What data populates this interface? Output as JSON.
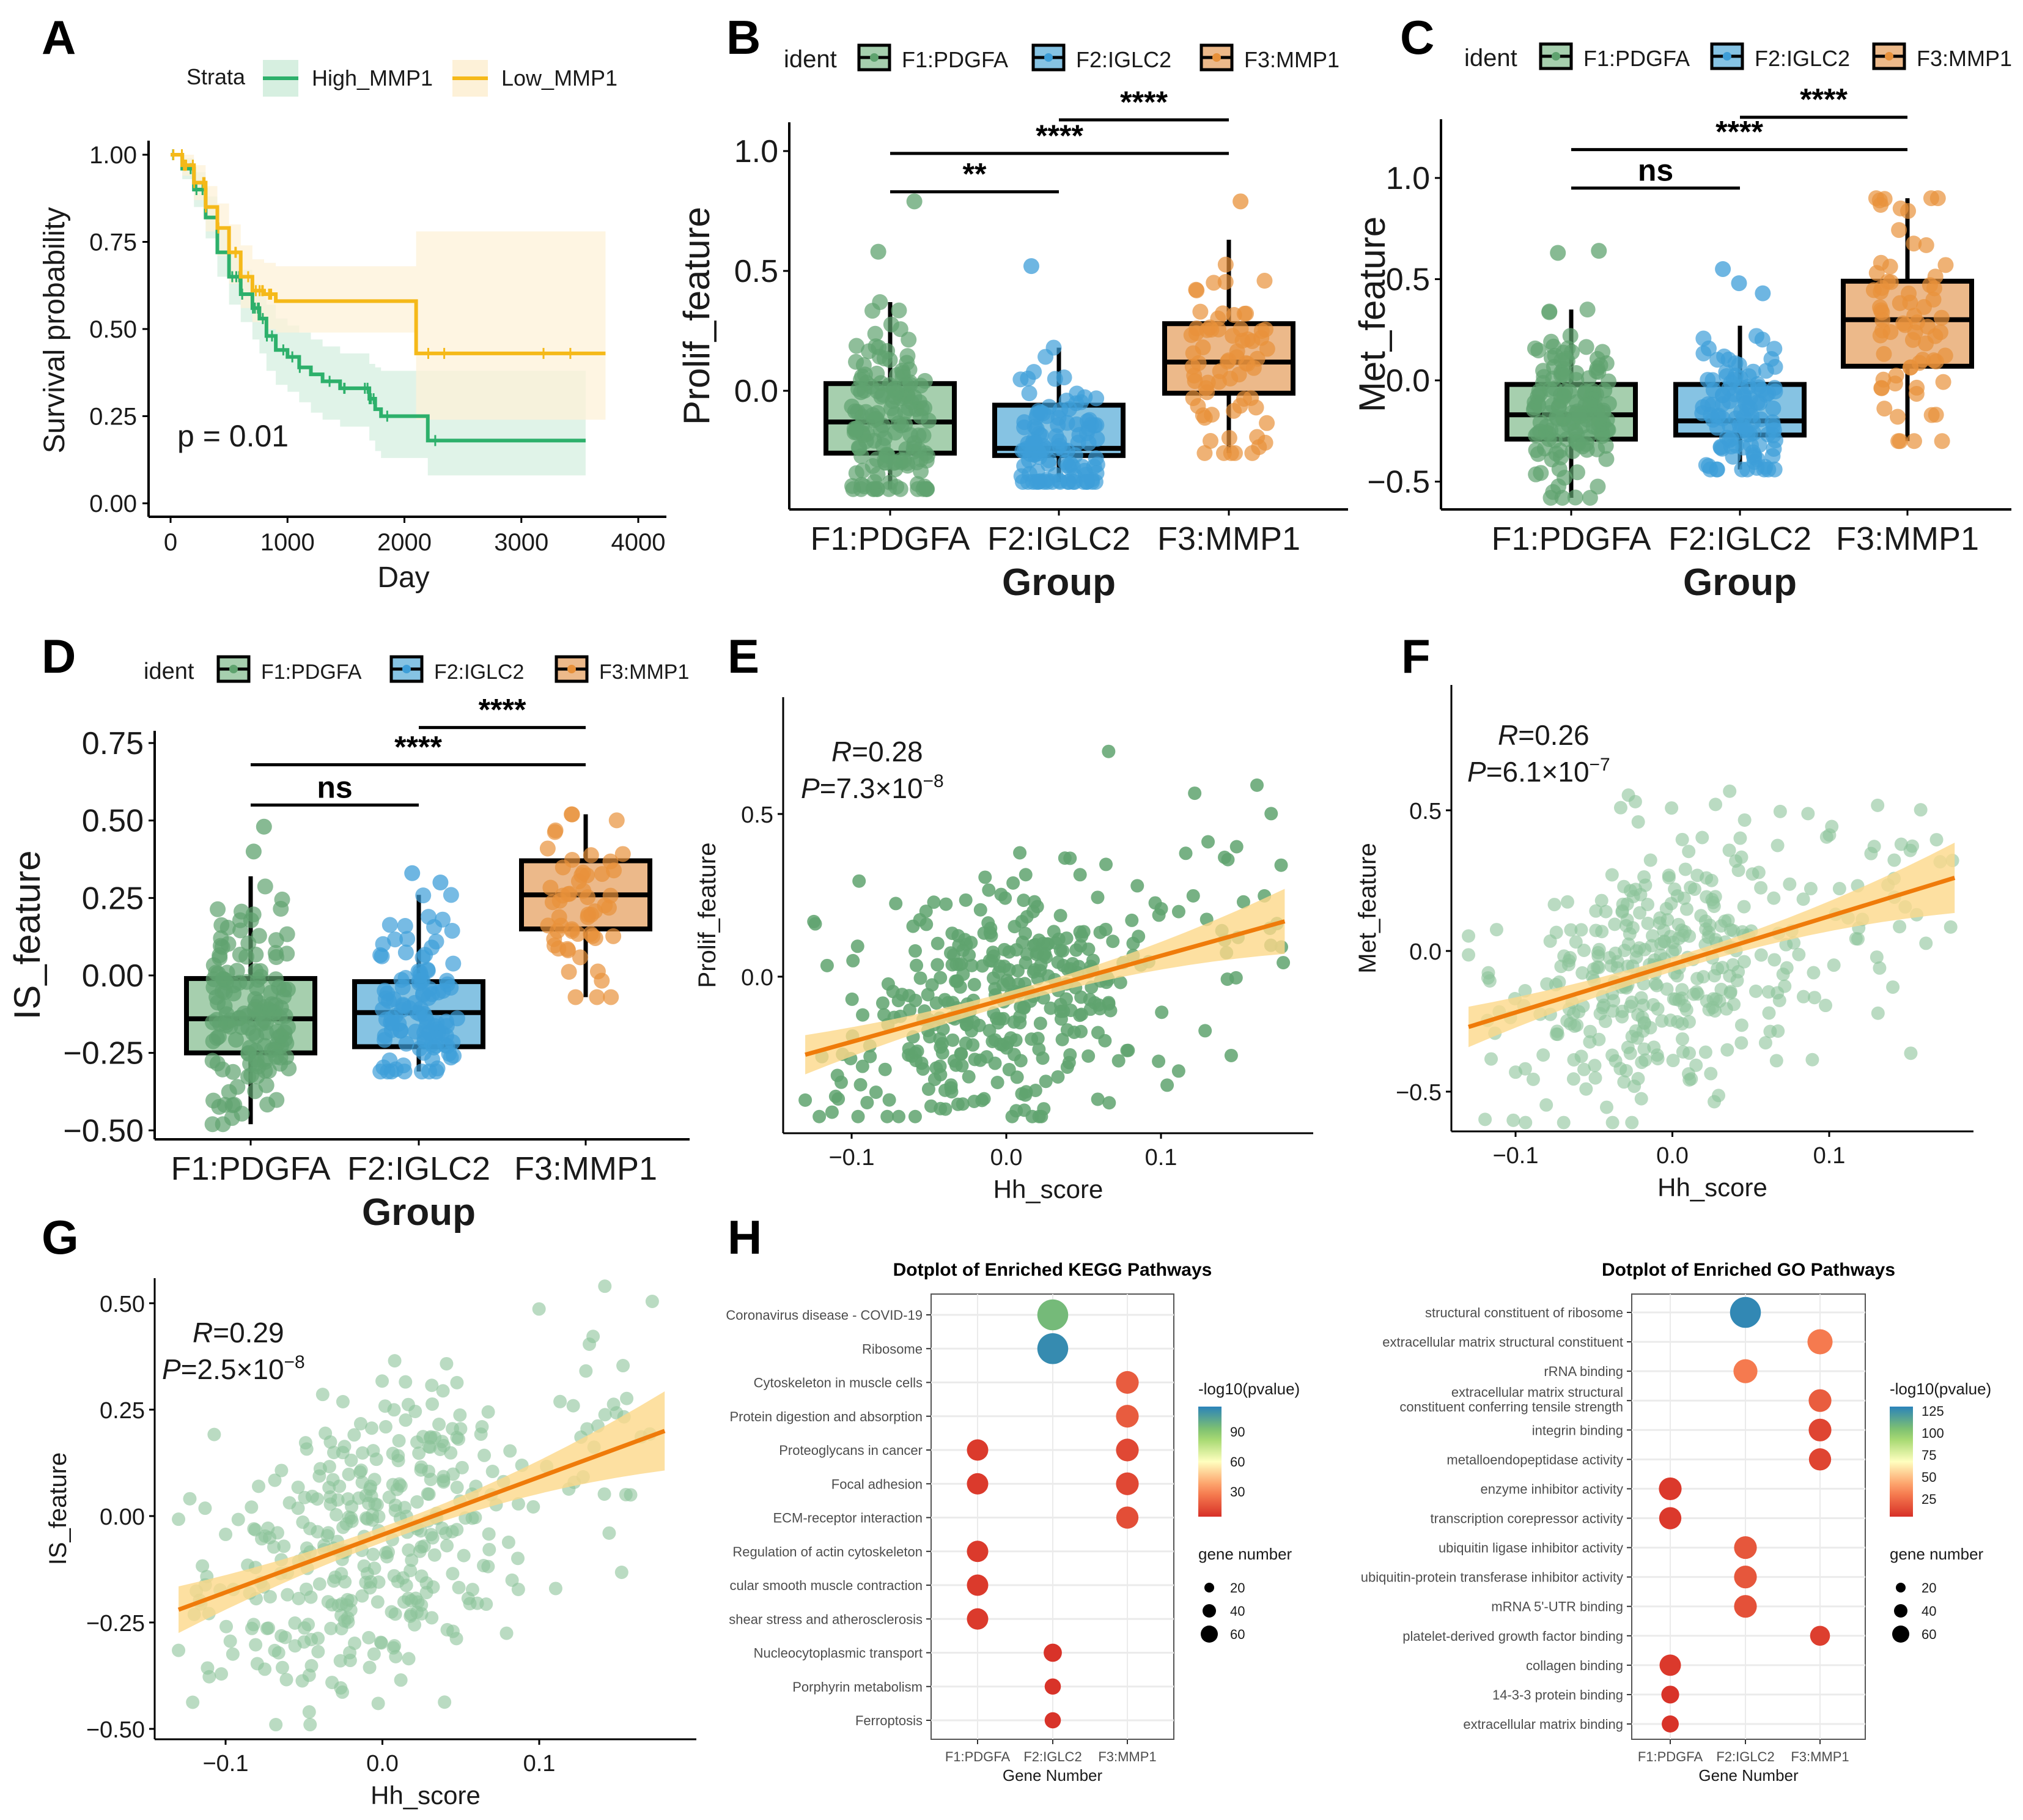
{
  "figure": {
    "panel_letters": [
      "A",
      "B",
      "C",
      "D",
      "E",
      "F",
      "G",
      "H"
    ]
  },
  "chart_data": [
    {
      "panel": "A",
      "type": "line",
      "subtype": "kaplan-meier",
      "title": "",
      "xlabel": "Day",
      "ylabel": "Survival probability",
      "xlim": [
        0,
        4000
      ],
      "ylim": [
        0,
        1
      ],
      "xticks": [
        "0",
        "1000",
        "2000",
        "3000",
        "4000"
      ],
      "yticks": [
        "0.00",
        "0.25",
        "0.50",
        "0.75",
        "1.00"
      ],
      "legend": {
        "title": "Strata",
        "position": "top",
        "entries": [
          "High_MMP1",
          "Low_MMP1"
        ]
      },
      "annotation": "p = 0.01",
      "series": [
        {
          "name": "High_MMP1",
          "color": "#2db06b",
          "ci_color": "#d6efe0",
          "x": [
            0,
            100,
            200,
            300,
            400,
            500,
            600,
            700,
            760,
            820,
            900,
            1000,
            1100,
            1200,
            1300,
            1450,
            1700,
            1750,
            1800,
            2100,
            2200,
            3550
          ],
          "y": [
            1.0,
            0.96,
            0.9,
            0.82,
            0.72,
            0.65,
            0.6,
            0.56,
            0.53,
            0.48,
            0.44,
            0.42,
            0.39,
            0.37,
            0.35,
            0.33,
            0.3,
            0.27,
            0.25,
            0.25,
            0.18,
            0.18
          ],
          "ci_low": [
            1.0,
            0.93,
            0.85,
            0.76,
            0.65,
            0.57,
            0.52,
            0.47,
            0.43,
            0.38,
            0.34,
            0.32,
            0.29,
            0.26,
            0.24,
            0.22,
            0.18,
            0.15,
            0.13,
            0.13,
            0.08,
            0.08
          ],
          "ci_high": [
            1.0,
            0.99,
            0.95,
            0.88,
            0.79,
            0.72,
            0.67,
            0.63,
            0.61,
            0.57,
            0.53,
            0.51,
            0.49,
            0.47,
            0.45,
            0.43,
            0.4,
            0.39,
            0.38,
            0.38,
            0.38,
            0.38
          ]
        },
        {
          "name": "Low_MMP1",
          "color": "#f5b919",
          "ci_color": "#fdf1d8",
          "x": [
            0,
            100,
            200,
            300,
            400,
            500,
            600,
            700,
            800,
            900,
            2100,
            3720
          ],
          "y": [
            1.0,
            0.97,
            0.92,
            0.85,
            0.79,
            0.72,
            0.65,
            0.61,
            0.6,
            0.58,
            0.43,
            0.43
          ],
          "ci_low": [
            1.0,
            0.94,
            0.87,
            0.78,
            0.71,
            0.63,
            0.56,
            0.52,
            0.5,
            0.49,
            0.24,
            0.24
          ],
          "ci_high": [
            1.0,
            1.0,
            0.97,
            0.91,
            0.86,
            0.8,
            0.74,
            0.7,
            0.69,
            0.68,
            0.78,
            0.78
          ]
        }
      ]
    },
    {
      "panel": "B",
      "type": "box",
      "xlabel": "Group",
      "ylabel": "Prolif_feature",
      "ylim": [
        -0.45,
        1.1
      ],
      "yticks": [
        "0.0",
        "0.5",
        "1.0"
      ],
      "ytick_values": [
        0.0,
        0.5,
        1.0
      ],
      "legend": {
        "title": "ident",
        "position": "top",
        "entries": [
          "F1:PDGFA",
          "F2:IGLC2",
          "F3:MMP1"
        ]
      },
      "categories": [
        "F1:PDGFA",
        "F2:IGLC2",
        "F3:MMP1"
      ],
      "boxes": [
        {
          "q1": -0.26,
          "median": -0.13,
          "q3": 0.03,
          "whisker_low": -0.41,
          "whisker_high": 0.37,
          "n_points": 150,
          "outliers": [
            0.79,
            0.58
          ]
        },
        {
          "q1": -0.27,
          "median": -0.24,
          "q3": -0.06,
          "whisker_low": -0.38,
          "whisker_high": 0.18,
          "n_points": 110,
          "outliers": [
            0.52
          ]
        },
        {
          "q1": -0.01,
          "median": 0.12,
          "q3": 0.28,
          "whisker_low": -0.26,
          "whisker_high": 0.63,
          "n_points": 70,
          "outliers": [
            0.79
          ]
        }
      ],
      "comparisons": [
        {
          "from": 0,
          "to": 1,
          "label": "**",
          "y": 0.83
        },
        {
          "from": 0,
          "to": 2,
          "label": "****",
          "y": 0.99
        },
        {
          "from": 1,
          "to": 2,
          "label": "****",
          "y": 1.13
        }
      ]
    },
    {
      "panel": "C",
      "type": "box",
      "xlabel": "Group",
      "ylabel": "Met_feature",
      "ylim": [
        -0.6,
        1.3
      ],
      "yticks": [
        "−0.5",
        "0.0",
        "0.5",
        "1.0"
      ],
      "ytick_values": [
        -0.5,
        0.0,
        0.5,
        1.0
      ],
      "legend": {
        "title": "ident",
        "position": "top",
        "entries": [
          "F1:PDGFA",
          "F2:IGLC2",
          "F3:MMP1"
        ]
      },
      "categories": [
        "F1:PDGFA",
        "F2:IGLC2",
        "F3:MMP1"
      ],
      "boxes": [
        {
          "q1": -0.29,
          "median": -0.17,
          "q3": -0.02,
          "whisker_low": -0.58,
          "whisker_high": 0.35,
          "n_points": 150,
          "outliers": [
            0.63,
            0.64
          ]
        },
        {
          "q1": -0.27,
          "median": -0.2,
          "q3": -0.02,
          "whisker_low": -0.44,
          "whisker_high": 0.27,
          "n_points": 110,
          "outliers": [
            0.55,
            0.48,
            0.43
          ]
        },
        {
          "q1": 0.07,
          "median": 0.3,
          "q3": 0.49,
          "whisker_low": -0.3,
          "whisker_high": 0.9,
          "n_points": 70,
          "outliers": []
        }
      ],
      "comparisons": [
        {
          "from": 0,
          "to": 1,
          "label": "ns",
          "y": 0.95
        },
        {
          "from": 0,
          "to": 2,
          "label": "****",
          "y": 1.14
        },
        {
          "from": 1,
          "to": 2,
          "label": "****",
          "y": 1.3
        }
      ]
    },
    {
      "panel": "D",
      "type": "box",
      "xlabel": "Group",
      "ylabel": "IS_feature",
      "ylim": [
        -0.53,
        0.77
      ],
      "yticks": [
        "−0.50",
        "−0.25",
        "0.00",
        "0.25",
        "0.50",
        "0.75"
      ],
      "ytick_values": [
        -0.5,
        -0.25,
        0.0,
        0.25,
        0.5,
        0.75
      ],
      "legend": {
        "title": "ident",
        "position": "top",
        "entries": [
          "F1:PDGFA",
          "F2:IGLC2",
          "F3:MMP1"
        ]
      },
      "categories": [
        "F1:PDGFA",
        "F2:IGLC2",
        "F3:MMP1"
      ],
      "boxes": [
        {
          "q1": -0.25,
          "median": -0.14,
          "q3": -0.01,
          "whisker_low": -0.48,
          "whisker_high": 0.32,
          "n_points": 150,
          "outliers": [
            0.48,
            0.4
          ]
        },
        {
          "q1": -0.23,
          "median": -0.12,
          "q3": -0.02,
          "whisker_low": -0.31,
          "whisker_high": 0.26,
          "n_points": 110,
          "outliers": [
            0.33,
            0.3
          ]
        },
        {
          "q1": 0.15,
          "median": 0.26,
          "q3": 0.37,
          "whisker_low": -0.07,
          "whisker_high": 0.52,
          "n_points": 55,
          "outliers": []
        }
      ],
      "comparisons": [
        {
          "from": 0,
          "to": 1,
          "label": "ns",
          "y": 0.55
        },
        {
          "from": 0,
          "to": 2,
          "label": "****",
          "y": 0.68
        },
        {
          "from": 1,
          "to": 2,
          "label": "****",
          "y": 0.8
        }
      ]
    },
    {
      "panel": "E",
      "type": "scatter",
      "xlabel": "Hh_score",
      "ylabel": "Prolif_feature",
      "xlim": [
        -0.145,
        0.195
      ],
      "ylim": [
        -0.47,
        0.87
      ],
      "xticks": [
        "−0.1",
        "0.0",
        "0.1"
      ],
      "xtick_values": [
        -0.1,
        0.0,
        0.1
      ],
      "yticks": [
        "0.0",
        "0.5"
      ],
      "ytick_values": [
        0.0,
        0.5
      ],
      "annotation": {
        "R": "0.28",
        "P_mantissa": "7.3",
        "P_exponent": "−8"
      },
      "fit": {
        "x": [
          -0.13,
          0.18
        ],
        "y": [
          -0.24,
          0.17
        ],
        "ci_half_width_ends": [
          0.06,
          0.08
        ],
        "ci_half_width_mid": 0.02
      },
      "n_points": 380,
      "point_color": "#5fa36f",
      "line_color": "#ef7b0a",
      "band_color": "#fcd88a"
    },
    {
      "panel": "F",
      "type": "scatter",
      "xlabel": "Hh_score",
      "ylabel": "Met_feature",
      "xlim": [
        -0.135,
        0.21
      ],
      "ylim": [
        -0.65,
        0.96
      ],
      "xticks": [
        "−0.1",
        "0.0",
        "0.1"
      ],
      "xtick_values": [
        -0.1,
        0.0,
        0.1
      ],
      "yticks": [
        "−0.5",
        "0.0",
        "0.5"
      ],
      "ytick_values": [
        -0.5,
        0.0,
        0.5
      ],
      "annotation": {
        "R": "0.26",
        "P_mantissa": "6.1",
        "P_exponent": "−7"
      },
      "fit": {
        "x": [
          -0.13,
          0.18
        ],
        "y": [
          -0.27,
          0.26
        ],
        "ci_half_width_ends": [
          0.07,
          0.1
        ],
        "ci_half_width_mid": 0.025
      },
      "n_points": 380,
      "point_color": "#8cc39a",
      "line_color": "#ef7b0a",
      "band_color": "#fcd88a"
    },
    {
      "panel": "G",
      "type": "scatter",
      "xlabel": "Hh_score",
      "ylabel": "IS_feature",
      "xlim": [
        -0.145,
        0.195
      ],
      "ylim": [
        -0.53,
        0.57
      ],
      "xticks": [
        "−0.1",
        "0.0",
        "0.1"
      ],
      "xtick_values": [
        -0.1,
        0.0,
        0.1
      ],
      "yticks": [
        "−0.50",
        "−0.25",
        "0.00",
        "0.25",
        "0.50"
      ],
      "ytick_values": [
        -0.5,
        -0.25,
        0.0,
        0.25,
        0.5
      ],
      "annotation": {
        "R": "0.29",
        "P_mantissa": "2.5",
        "P_exponent": "−8"
      },
      "fit": {
        "x": [
          -0.13,
          0.18
        ],
        "y": [
          -0.22,
          0.2
        ],
        "ci_half_width_ends": [
          0.055,
          0.075
        ],
        "ci_half_width_mid": 0.018
      },
      "n_points": 380,
      "point_color": "#8cc39a",
      "line_color": "#ef7b0a",
      "band_color": "#fcd88a"
    },
    {
      "panel": "H-KEGG",
      "type": "scatter",
      "subtype": "dotplot",
      "title": "Dotplot of Enriched KEGG Pathways",
      "xlabel": "Gene Number",
      "ylabel": "",
      "categories": [
        "F1:PDGFA",
        "F2:IGLC2",
        "F3:MMP1"
      ],
      "color_legend": {
        "title": "-log10(pvalue)",
        "ticks": [
          30,
          60,
          90
        ],
        "range": [
          5,
          115
        ]
      },
      "size_legend": {
        "title": "gene number",
        "ticks": [
          20,
          40,
          60
        ]
      },
      "terms": [
        "Coronavirus disease - COVID-19",
        "Ribosome",
        "Cytoskeleton in muscle cells",
        "Protein digestion and absorption",
        "Proteoglycans in cancer",
        "Focal adhesion",
        "ECM-receptor interaction",
        "Regulation of actin cytoskeleton",
        "cular smooth muscle contraction",
        "shear stress and atherosclerosis",
        "Nucleocytoplasmic transport",
        "Porphyrin metabolism",
        "Ferroptosis"
      ],
      "points": [
        {
          "term": 0,
          "group": 1,
          "pval": 95,
          "genes": 70
        },
        {
          "term": 1,
          "group": 1,
          "pval": 112,
          "genes": 70
        },
        {
          "term": 2,
          "group": 2,
          "pval": 18,
          "genes": 30
        },
        {
          "term": 3,
          "group": 2,
          "pval": 18,
          "genes": 30
        },
        {
          "term": 4,
          "group": 0,
          "pval": 8,
          "genes": 25
        },
        {
          "term": 4,
          "group": 2,
          "pval": 12,
          "genes": 30
        },
        {
          "term": 5,
          "group": 0,
          "pval": 8,
          "genes": 25
        },
        {
          "term": 5,
          "group": 2,
          "pval": 12,
          "genes": 30
        },
        {
          "term": 6,
          "group": 2,
          "pval": 14,
          "genes": 28
        },
        {
          "term": 7,
          "group": 0,
          "pval": 8,
          "genes": 25
        },
        {
          "term": 8,
          "group": 0,
          "pval": 8,
          "genes": 25
        },
        {
          "term": 9,
          "group": 0,
          "pval": 8,
          "genes": 25
        },
        {
          "term": 10,
          "group": 1,
          "pval": 6,
          "genes": 15
        },
        {
          "term": 11,
          "group": 1,
          "pval": 6,
          "genes": 10
        },
        {
          "term": 12,
          "group": 1,
          "pval": 6,
          "genes": 10
        }
      ]
    },
    {
      "panel": "H-GO",
      "type": "scatter",
      "subtype": "dotplot",
      "title": "Dotplot of Enriched GO Pathways",
      "xlabel": "Gene Number",
      "ylabel": "",
      "categories": [
        "F1:PDGFA",
        "F2:IGLC2",
        "F3:MMP1"
      ],
      "color_legend": {
        "title": "-log10(pvalue)",
        "ticks": [
          25,
          50,
          75,
          100,
          125
        ],
        "range": [
          5,
          130
        ]
      },
      "size_legend": {
        "title": "gene number",
        "ticks": [
          20,
          40,
          60
        ]
      },
      "terms": [
        "structural constituent of ribosome",
        "extracellular matrix structural constituent",
        "rRNA binding",
        "extracellular matrix structural\nconstituent conferring tensile strength",
        "integrin binding",
        "metalloendopeptidase activity",
        "enzyme inhibitor activity",
        "transcription corepressor activity",
        "ubiquitin ligase inhibitor activity",
        "ubiquitin-protein transferase inhibitor activity",
        "mRNA 5'-UTR binding",
        "platelet-derived growth factor binding",
        "collagen binding",
        "14-3-3 protein binding",
        "extracellular matrix binding"
      ],
      "points": [
        {
          "term": 0,
          "group": 1,
          "pval": 128,
          "genes": 70
        },
        {
          "term": 1,
          "group": 2,
          "pval": 30,
          "genes": 40
        },
        {
          "term": 2,
          "group": 1,
          "pval": 30,
          "genes": 35
        },
        {
          "term": 3,
          "group": 2,
          "pval": 20,
          "genes": 30
        },
        {
          "term": 4,
          "group": 2,
          "pval": 12,
          "genes": 30
        },
        {
          "term": 5,
          "group": 2,
          "pval": 12,
          "genes": 28
        },
        {
          "term": 6,
          "group": 0,
          "pval": 8,
          "genes": 30
        },
        {
          "term": 7,
          "group": 0,
          "pval": 8,
          "genes": 28
        },
        {
          "term": 8,
          "group": 1,
          "pval": 18,
          "genes": 30
        },
        {
          "term": 9,
          "group": 1,
          "pval": 18,
          "genes": 30
        },
        {
          "term": 10,
          "group": 1,
          "pval": 16,
          "genes": 30
        },
        {
          "term": 11,
          "group": 2,
          "pval": 10,
          "genes": 20
        },
        {
          "term": 12,
          "group": 0,
          "pval": 8,
          "genes": 25
        },
        {
          "term": 13,
          "group": 0,
          "pval": 6,
          "genes": 14
        },
        {
          "term": 14,
          "group": 0,
          "pval": 6,
          "genes": 12
        }
      ]
    }
  ],
  "colors": {
    "group_fill": [
      "#a6cfae",
      "#86c3e3",
      "#ecb98a"
    ],
    "group_point": [
      "#5fa36f",
      "#3d9ed8",
      "#e8913a"
    ]
  }
}
